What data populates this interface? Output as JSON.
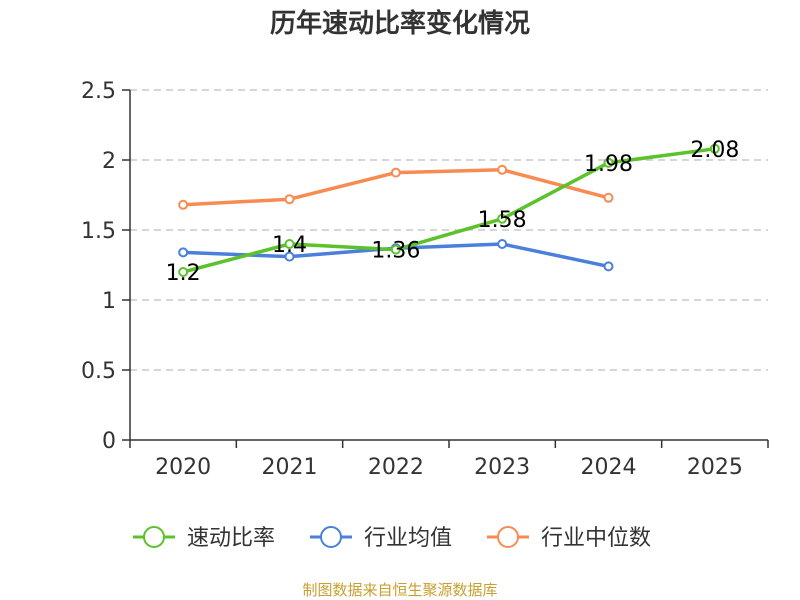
{
  "chart_data": {
    "type": "line",
    "title": "历年速动比率变化情况",
    "categories": [
      "2020",
      "2021",
      "2022",
      "2023",
      "2024",
      "2025"
    ],
    "ylim": [
      0,
      2.5
    ],
    "yticks": [
      "0",
      "0.5",
      "1",
      "1.5",
      "2",
      "2.5"
    ],
    "grid": true,
    "legend_position": "bottom",
    "series": [
      {
        "name": "速动比率",
        "color": "#5cc22b",
        "values": [
          1.2,
          1.4,
          1.36,
          1.58,
          1.98,
          2.08
        ],
        "labels": [
          "1.2",
          "1.4",
          "1.36",
          "1.58",
          "1.98",
          "2.08"
        ]
      },
      {
        "name": "行业均值",
        "color": "#4a7fdb",
        "values": [
          1.34,
          1.31,
          1.37,
          1.4,
          1.24,
          null
        ]
      },
      {
        "name": "行业中位数",
        "color": "#f78b52",
        "values": [
          1.68,
          1.72,
          1.91,
          1.93,
          1.73,
          null
        ]
      }
    ],
    "source": "制图数据来自恒生聚源数据库",
    "source_color": "#c8a030"
  }
}
